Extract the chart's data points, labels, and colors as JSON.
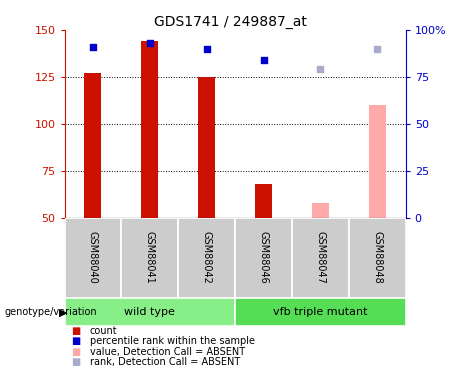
{
  "title": "GDS1741 / 249887_at",
  "categories": [
    "GSM88040",
    "GSM88041",
    "GSM88042",
    "GSM88046",
    "GSM88047",
    "GSM88048"
  ],
  "ylim_left": [
    50,
    150
  ],
  "ylim_right": [
    0,
    100
  ],
  "yticks_left": [
    50,
    75,
    100,
    125,
    150
  ],
  "yticks_right": [
    0,
    25,
    50,
    75,
    100
  ],
  "ytick_labels_right": [
    "0",
    "25",
    "50",
    "75",
    "100%"
  ],
  "bar_base": 50,
  "count_values": [
    127,
    144,
    125,
    68,
    null,
    null
  ],
  "absent_bar_values": [
    null,
    null,
    null,
    null,
    58,
    110
  ],
  "percentile_present": [
    91,
    93,
    90,
    84,
    null,
    null
  ],
  "percentile_absent": [
    null,
    null,
    null,
    null,
    79,
    90
  ],
  "count_color_present": "#cc1100",
  "count_color_absent": "#ffaaaa",
  "percentile_color_present": "#0000cc",
  "percentile_color_absent": "#aaaacc",
  "left_axis_color": "#cc1100",
  "right_axis_color": "#0000cc",
  "bg_labels": "#cccccc",
  "bg_wildtype": "#88ee88",
  "bg_vfb": "#55dd55",
  "bar_width": 0.3,
  "grid_yticks": [
    75,
    100,
    125
  ],
  "genotype_label": "genotype/variation",
  "wildtype_label": "wild type",
  "vfb_label": "vfb triple mutant",
  "legend_items": [
    {
      "label": "count",
      "color": "#cc1100"
    },
    {
      "label": "percentile rank within the sample",
      "color": "#0000cc"
    },
    {
      "label": "value, Detection Call = ABSENT",
      "color": "#ffaaaa"
    },
    {
      "label": "rank, Detection Call = ABSENT",
      "color": "#aaaacc"
    }
  ]
}
